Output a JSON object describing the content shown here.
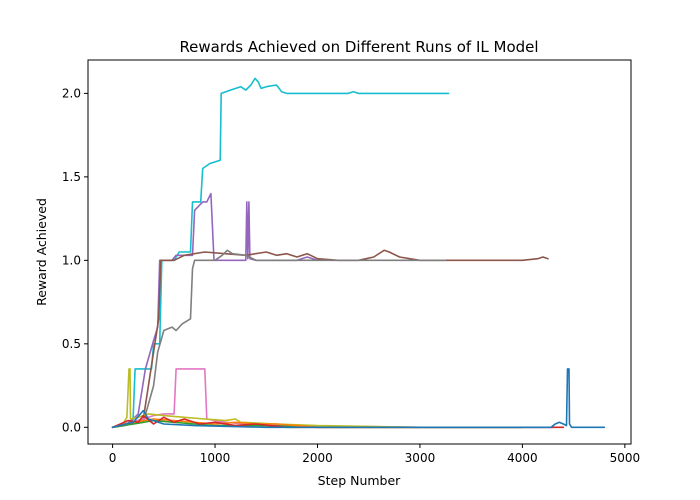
{
  "chart_data": {
    "type": "line",
    "title": "Rewards Achieved on Different Runs of IL Model",
    "xlabel": "Step Number",
    "ylabel": "Reward Achieved",
    "xlim": [
      -240,
      5060
    ],
    "ylim": [
      -0.1,
      2.2
    ],
    "xticks": [
      0,
      1000,
      2000,
      3000,
      4000,
      5000
    ],
    "yticks": [
      0.0,
      0.5,
      1.0,
      1.5,
      2.0
    ],
    "xtick_labels": [
      "0",
      "1000",
      "2000",
      "3000",
      "4000",
      "5000"
    ],
    "ytick_labels": [
      "0.0",
      "0.5",
      "1.0",
      "1.5",
      "2.0"
    ],
    "grid": false,
    "legend": "none",
    "series": [
      {
        "color": "#17becf",
        "points": [
          [
            0,
            0
          ],
          [
            120,
            0.01
          ],
          [
            200,
            0.05
          ],
          [
            220,
            0.35
          ],
          [
            380,
            0.35
          ],
          [
            400,
            0.5
          ],
          [
            460,
            0.5
          ],
          [
            480,
            1.0
          ],
          [
            600,
            1.0
          ],
          [
            650,
            1.05
          ],
          [
            760,
            1.05
          ],
          [
            780,
            1.35
          ],
          [
            860,
            1.35
          ],
          [
            880,
            1.55
          ],
          [
            950,
            1.58
          ],
          [
            1050,
            1.6
          ],
          [
            1060,
            2.0
          ],
          [
            1150,
            2.02
          ],
          [
            1250,
            2.04
          ],
          [
            1300,
            2.02
          ],
          [
            1350,
            2.05
          ],
          [
            1390,
            2.09
          ],
          [
            1420,
            2.07
          ],
          [
            1450,
            2.03
          ],
          [
            1500,
            2.04
          ],
          [
            1600,
            2.05
          ],
          [
            1650,
            2.01
          ],
          [
            1700,
            2.0
          ],
          [
            2300,
            2.0
          ],
          [
            2350,
            2.01
          ],
          [
            2400,
            2.0
          ],
          [
            3280,
            2.0
          ]
        ]
      },
      {
        "color": "#9467bd",
        "points": [
          [
            0,
            0
          ],
          [
            150,
            0.02
          ],
          [
            250,
            0.08
          ],
          [
            320,
            0.35
          ],
          [
            400,
            0.52
          ],
          [
            440,
            0.6
          ],
          [
            460,
            1.0
          ],
          [
            580,
            1.0
          ],
          [
            620,
            1.03
          ],
          [
            780,
            1.03
          ],
          [
            800,
            1.3
          ],
          [
            880,
            1.35
          ],
          [
            920,
            1.35
          ],
          [
            960,
            1.4
          ],
          [
            990,
            1.0
          ],
          [
            1300,
            1.0
          ],
          [
            1310,
            1.35
          ],
          [
            1320,
            1.01
          ],
          [
            1330,
            1.35
          ],
          [
            1340,
            1.01
          ],
          [
            1400,
            1.0
          ],
          [
            1800,
            1.0
          ],
          [
            1900,
            1.02
          ],
          [
            2000,
            1.0
          ]
        ]
      },
      {
        "color": "#8c564b",
        "points": [
          [
            0,
            0
          ],
          [
            300,
            0.05
          ],
          [
            450,
            0.65
          ],
          [
            470,
            1.0
          ],
          [
            600,
            1.0
          ],
          [
            700,
            1.03
          ],
          [
            900,
            1.05
          ],
          [
            1100,
            1.04
          ],
          [
            1300,
            1.03
          ],
          [
            1500,
            1.05
          ],
          [
            1600,
            1.03
          ],
          [
            1700,
            1.04
          ],
          [
            1800,
            1.02
          ],
          [
            1900,
            1.04
          ],
          [
            2000,
            1.01
          ],
          [
            2200,
            1.0
          ],
          [
            2400,
            1.0
          ],
          [
            2550,
            1.02
          ],
          [
            2650,
            1.06
          ],
          [
            2700,
            1.05
          ],
          [
            2800,
            1.02
          ],
          [
            3000,
            1.0
          ],
          [
            3500,
            1.0
          ],
          [
            4000,
            1.0
          ],
          [
            4150,
            1.01
          ],
          [
            4200,
            1.02
          ],
          [
            4250,
            1.01
          ]
        ]
      },
      {
        "color": "#7f7f7f",
        "points": [
          [
            0,
            0
          ],
          [
            300,
            0.03
          ],
          [
            400,
            0.25
          ],
          [
            440,
            0.45
          ],
          [
            500,
            0.58
          ],
          [
            580,
            0.6
          ],
          [
            620,
            0.58
          ],
          [
            680,
            0.62
          ],
          [
            760,
            0.65
          ],
          [
            780,
            0.95
          ],
          [
            800,
            1.0
          ],
          [
            1000,
            1.0
          ],
          [
            1070,
            1.03
          ],
          [
            1120,
            1.06
          ],
          [
            1170,
            1.04
          ],
          [
            1300,
            1.03
          ],
          [
            1400,
            1.0
          ],
          [
            2000,
            1.0
          ],
          [
            3000,
            1.0
          ],
          [
            3250,
            1.0
          ]
        ]
      },
      {
        "color": "#e377c2",
        "points": [
          [
            0,
            0
          ],
          [
            200,
            0.03
          ],
          [
            400,
            0.07
          ],
          [
            500,
            0.08
          ],
          [
            600,
            0.08
          ],
          [
            620,
            0.35
          ],
          [
            900,
            0.35
          ],
          [
            920,
            0.05
          ],
          [
            1000,
            0.04
          ],
          [
            1100,
            0.03
          ],
          [
            1300,
            0.02
          ],
          [
            1700,
            0.01
          ],
          [
            3000,
            0.0
          ],
          [
            4000,
            0.0
          ],
          [
            4300,
            0.0
          ]
        ]
      },
      {
        "color": "#bcbd22",
        "points": [
          [
            0,
            0
          ],
          [
            100,
            0.02
          ],
          [
            140,
            0.06
          ],
          [
            160,
            0.35
          ],
          [
            170,
            0.35
          ],
          [
            175,
            0.05
          ],
          [
            250,
            0.06
          ],
          [
            350,
            0.08
          ],
          [
            500,
            0.07
          ],
          [
            700,
            0.06
          ],
          [
            900,
            0.05
          ],
          [
            1100,
            0.04
          ],
          [
            1200,
            0.05
          ],
          [
            1250,
            0.03
          ],
          [
            1600,
            0.02
          ],
          [
            2000,
            0.01
          ],
          [
            3000,
            0.0
          ],
          [
            4000,
            0.0
          ]
        ]
      },
      {
        "color": "#2ca02c",
        "points": [
          [
            0,
            0
          ],
          [
            200,
            0.02
          ],
          [
            400,
            0.04
          ],
          [
            600,
            0.03
          ],
          [
            800,
            0.02
          ],
          [
            1000,
            0.01
          ],
          [
            1500,
            0.01
          ],
          [
            2000,
            0.0
          ],
          [
            3000,
            0.0
          ],
          [
            4000,
            0.0
          ]
        ]
      },
      {
        "color": "#ff7f0e",
        "points": [
          [
            0,
            0
          ],
          [
            200,
            0.03
          ],
          [
            400,
            0.05
          ],
          [
            600,
            0.04
          ],
          [
            800,
            0.03
          ],
          [
            1000,
            0.02
          ],
          [
            1200,
            0.03
          ],
          [
            1400,
            0.02
          ],
          [
            1600,
            0.02
          ],
          [
            1800,
            0.01
          ],
          [
            2000,
            0.0
          ],
          [
            3000,
            0.0
          ]
        ]
      },
      {
        "color": "#d62728",
        "points": [
          [
            0,
            0
          ],
          [
            150,
            0.04
          ],
          [
            250,
            0.03
          ],
          [
            300,
            0.07
          ],
          [
            400,
            0.02
          ],
          [
            500,
            0.06
          ],
          [
            600,
            0.03
          ],
          [
            700,
            0.05
          ],
          [
            850,
            0.02
          ],
          [
            1000,
            0.03
          ],
          [
            1200,
            0.01
          ],
          [
            1400,
            0.02
          ],
          [
            1700,
            0.0
          ],
          [
            2500,
            0.0
          ],
          [
            3500,
            0.0
          ],
          [
            4400,
            0.0
          ]
        ]
      },
      {
        "color": "#1f77b4",
        "points": [
          [
            0,
            0
          ],
          [
            200,
            0.03
          ],
          [
            300,
            0.1
          ],
          [
            350,
            0.05
          ],
          [
            500,
            0.02
          ],
          [
            800,
            0.01
          ],
          [
            1500,
            0.0
          ],
          [
            3000,
            0.0
          ],
          [
            4000,
            0.0
          ],
          [
            4280,
            0.0
          ],
          [
            4320,
            0.02
          ],
          [
            4360,
            0.03
          ],
          [
            4400,
            0.02
          ],
          [
            4430,
            0.01
          ],
          [
            4440,
            0.35
          ],
          [
            4455,
            0.35
          ],
          [
            4460,
            0.02
          ],
          [
            4480,
            0.0
          ],
          [
            4800,
            0.0
          ]
        ]
      }
    ]
  }
}
